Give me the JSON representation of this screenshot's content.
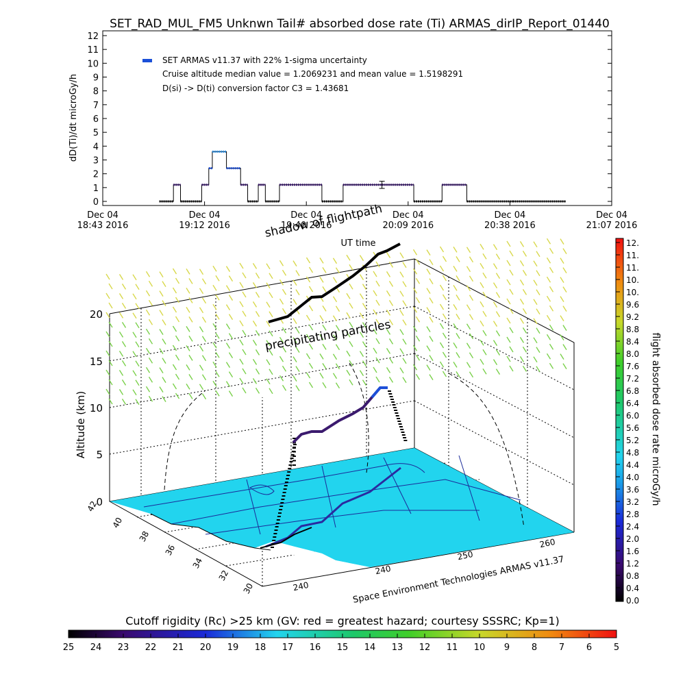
{
  "title": "SET_RAD_MUL_FM5 Unknwn Tail#  absorbed dose rate (Ti) ARMAS_dirIP_Report_01440",
  "chart_data": [
    {
      "type": "line",
      "ylabel": "dD(Ti)/dt microGy/h",
      "xlabel": "UT time",
      "ylim": [
        0,
        12
      ],
      "y_ticks": [
        "0",
        "1",
        "2",
        "3",
        "4",
        "5",
        "6",
        "7",
        "8",
        "9",
        "10",
        "11",
        "12"
      ],
      "x_ticks": [
        {
          "day": "Dec 04",
          "time": "18:43 2016"
        },
        {
          "day": "Dec 04",
          "time": "19:12 2016"
        },
        {
          "day": "Dec 04",
          "time": "19:40 2016"
        },
        {
          "day": "Dec 04",
          "time": "20:09 2016"
        },
        {
          "day": "Dec 04",
          "time": "20:38 2016"
        },
        {
          "day": "Dec 04",
          "time": "21:07 2016"
        }
      ],
      "annotations": [
        "SET ARMAS v11.37 with 22% 1-sigma uncertainty",
        "Cruise altitude median value = 1.2069231 and mean value = 1.5198291",
        "D(si) -> D(ti) conversion factor C3 = 1.43681"
      ],
      "legend_color": "#1a4fd8",
      "series": [
        {
          "x": [
            "18:59",
            "19:03",
            "19:03",
            "19:05",
            "19:05",
            "19:11",
            "19:11",
            "19:13",
            "19:13",
            "19:14",
            "19:14",
            "19:18",
            "19:18",
            "19:22",
            "19:22",
            "19:24",
            "19:24",
            "19:27",
            "19:27",
            "19:29",
            "19:29",
            "19:33",
            "19:33",
            "19:45",
            "19:45",
            "19:51",
            "19:51",
            "20:11",
            "20:11",
            "20:19",
            "20:19",
            "20:26",
            "20:26",
            "20:39",
            "20:39",
            "20:54",
            "20:54"
          ],
          "y": [
            0,
            0,
            1.2,
            1.2,
            0,
            0,
            1.2,
            1.2,
            2.4,
            2.4,
            3.6,
            3.6,
            2.4,
            2.4,
            1.2,
            1.2,
            0,
            0,
            1.2,
            1.2,
            0,
            0,
            1.2,
            1.2,
            0,
            0,
            1.2,
            1.2,
            0,
            0,
            1.2,
            1.2,
            0,
            0,
            0,
            0,
            0
          ]
        }
      ],
      "error_bar": {
        "x": "20:02",
        "y": 1.2,
        "err": 0.26
      }
    },
    {
      "type": "scatter",
      "title": "shadow of flightpath",
      "label_mid": "precipitating particles",
      "zlabel": "Altitude (km)",
      "z_ticks": [
        "0",
        "5",
        "10",
        "15",
        "20"
      ],
      "lat_ticks": [
        "42",
        "40",
        "38",
        "36",
        "34",
        "32",
        "30"
      ],
      "lon_ticks": [
        "240",
        "240",
        "250",
        "260"
      ],
      "footer_text": "Space Environment Technologies ARMAS v11.37"
    },
    {
      "type": "heatmap",
      "title": "flight absorbed dose rate microGy/h",
      "ticks": [
        "0.0",
        "0.4",
        "0.8",
        "1.2",
        "1.6",
        "2.0",
        "2.4",
        "2.8",
        "3.2",
        "3.6",
        "4.0",
        "4.4",
        "4.8",
        "5.2",
        "5.6",
        "6.0",
        "6.4",
        "6.8",
        "7.2",
        "7.6",
        "8.0",
        "8.4",
        "8.8",
        "9.2",
        "9.6",
        "10.",
        "10.",
        "11.",
        "11.",
        "12."
      ]
    },
    {
      "type": "heatmap",
      "title": "Cutoff rigidity (Rc) >25 km (GV: red = greatest hazard; courtesy SSSRC; Kp=1)",
      "ticks": [
        "25",
        "24",
        "23",
        "22",
        "21",
        "20",
        "19",
        "18",
        "17",
        "16",
        "15",
        "14",
        "13",
        "12",
        "11",
        "10",
        "9",
        "8",
        "7",
        "6",
        "5"
      ]
    }
  ],
  "colors": {
    "map_fill": "#22d4ee",
    "zero_dose": "#111111",
    "low_dose": "#3b1a6e",
    "mid_dose": "#1d4fd8",
    "high_dose": "#2a8de0",
    "particles_upper": "#d8d84a",
    "particles_lower": "#7ad04a",
    "flightpath_shadow": "#000000"
  }
}
